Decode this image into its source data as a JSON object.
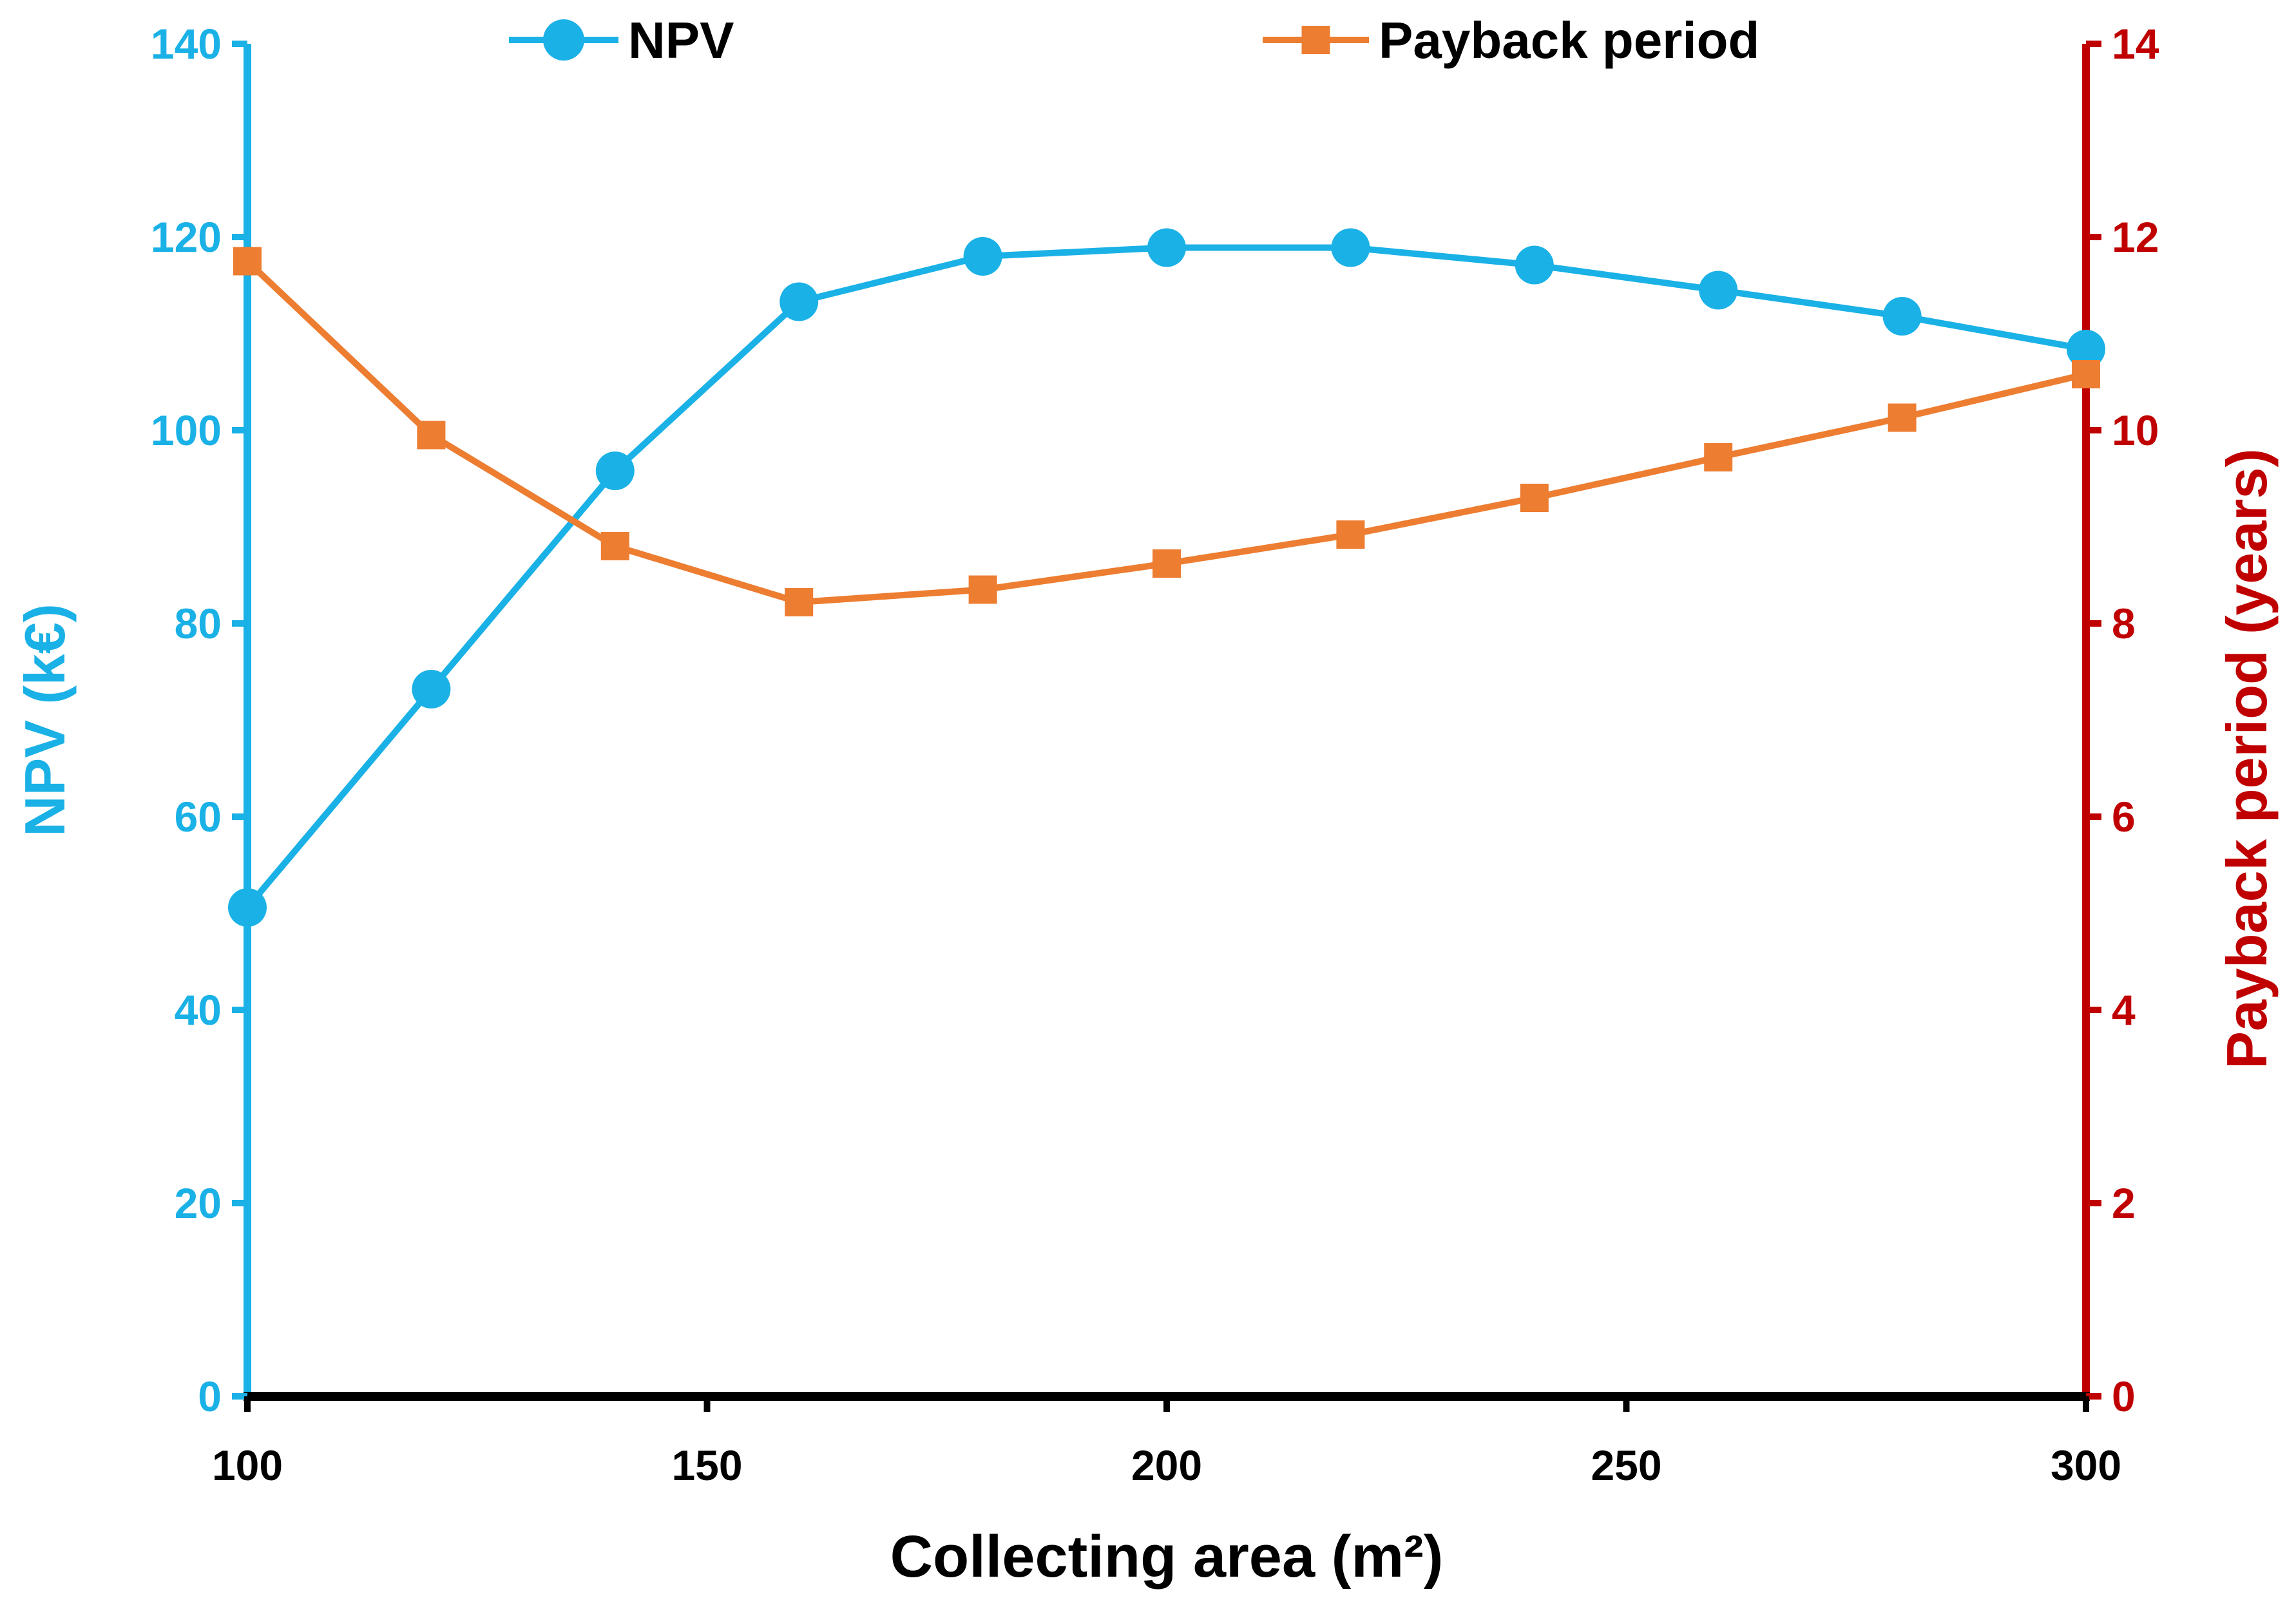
{
  "chart_data": {
    "type": "line",
    "title": "",
    "xlabel": "Collecting area (m²)",
    "ylabel_left": "NPV (k€)",
    "ylabel_right": "Payback period (years)",
    "xlim": [
      100,
      300
    ],
    "ylim_left": [
      0,
      140
    ],
    "ylim_right": [
      0,
      14
    ],
    "x_ticks": [
      "100",
      "150",
      "200",
      "250",
      "300"
    ],
    "y_left_ticks": [
      "0",
      "20",
      "40",
      "60",
      "80",
      "100",
      "120",
      "140"
    ],
    "y_right_ticks": [
      "0",
      "2",
      "4",
      "6",
      "8",
      "10",
      "12",
      "14"
    ],
    "grid": false,
    "legend_position": "top",
    "x": [
      100,
      120,
      140,
      160,
      180,
      200,
      220,
      240,
      260,
      280,
      300
    ],
    "series": [
      {
        "name": "NPV",
        "axis": "left",
        "marker": "circle",
        "color": "#1ab1e6",
        "values": [
          50.6,
          73.2,
          95.8,
          113.3,
          118.0,
          118.9,
          118.9,
          117.1,
          114.5,
          111.8,
          108.4
        ]
      },
      {
        "name": "Payback period",
        "axis": "right",
        "marker": "square",
        "color": "#ed7d31",
        "values": [
          11.75,
          9.95,
          8.8,
          8.22,
          8.35,
          8.62,
          8.92,
          9.3,
          9.72,
          10.13,
          10.58
        ]
      }
    ],
    "colors": {
      "left_axis": "#1ab1e6",
      "right_axis": "#c00000",
      "bottom_axis": "#000000"
    }
  }
}
